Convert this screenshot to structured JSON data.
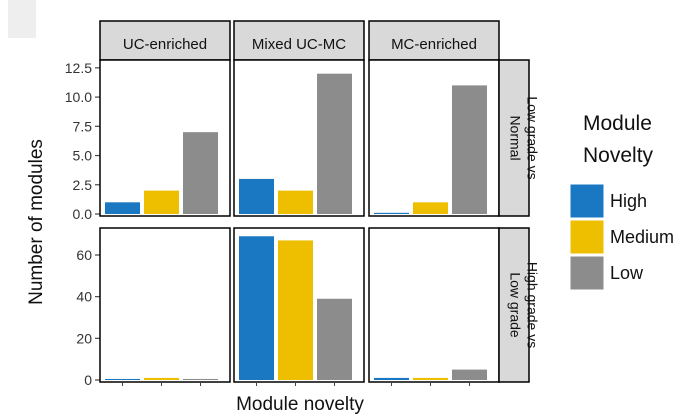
{
  "chart_data": {
    "type": "bar",
    "facet_columns": [
      "UC-enriched",
      "Mixed UC-MC",
      "MC-enriched"
    ],
    "facet_rows": [
      {
        "label_lines": [
          "Low grade vs",
          "Normal"
        ],
        "ylim": [
          0,
          13
        ],
        "ticks": [
          0,
          2.5,
          5,
          7.5,
          10,
          12.5
        ],
        "tick_labels": [
          "0.0",
          "2.5",
          "5.0",
          "7.5",
          "10.0",
          "12.5"
        ]
      },
      {
        "label_lines": [
          "High grade vs",
          "Low grade"
        ],
        "ylim": [
          0,
          72
        ],
        "ticks": [
          0,
          20,
          40,
          60
        ],
        "tick_labels": [
          "0",
          "20",
          "40",
          "60"
        ]
      }
    ],
    "categories": [
      "High",
      "Medium",
      "Low"
    ],
    "series": [
      {
        "name": "High",
        "color": "#1a78c2",
        "values": [
          [
            1,
            3,
            0.1
          ],
          [
            0.5,
            69,
            1
          ]
        ]
      },
      {
        "name": "Medium",
        "color": "#eebf00",
        "values": [
          [
            2,
            2,
            1
          ],
          [
            1,
            67,
            1
          ]
        ]
      },
      {
        "name": "Low",
        "color": "#8c8c8c",
        "values": [
          [
            7,
            12,
            11
          ],
          [
            0.5,
            39,
            5
          ]
        ]
      }
    ],
    "xlabel": "Module novelty",
    "ylabel": "Number of modules",
    "legend": {
      "title_lines": [
        "Module",
        "Novelty"
      ],
      "placement": "right"
    },
    "grid": false
  }
}
